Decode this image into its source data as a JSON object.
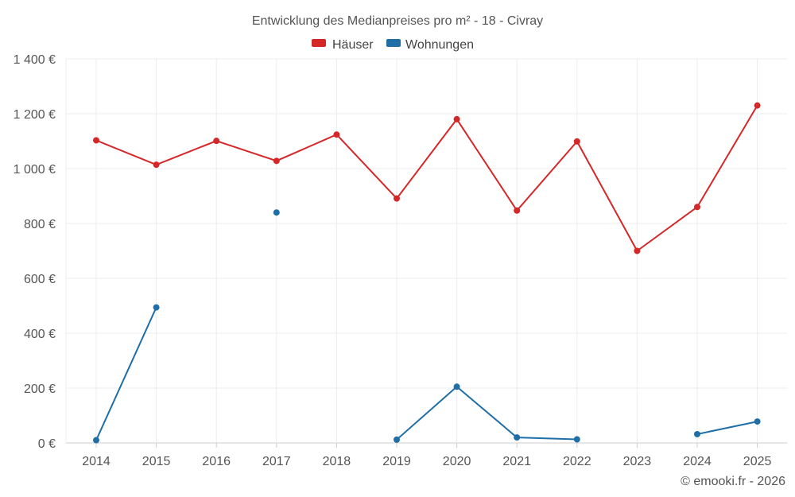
{
  "chart_data": {
    "type": "line",
    "title": "Entwicklung des Medianpreises pro m² - 18 - Civray",
    "xlabel": "",
    "ylabel": "",
    "categories": [
      "2014",
      "2015",
      "2016",
      "2017",
      "2018",
      "2019",
      "2020",
      "2021",
      "2022",
      "2023",
      "2024",
      "2025"
    ],
    "ylim": [
      0,
      1400
    ],
    "yticks": [
      0,
      200,
      400,
      600,
      800,
      1000,
      1200,
      1400
    ],
    "ytick_labels": [
      "0 €",
      "200 €",
      "400 €",
      "600 €",
      "800 €",
      "1 000 €",
      "1 200 €",
      "1 400 €"
    ],
    "grid": true,
    "legend_position": "top-center",
    "series": [
      {
        "name": "Häuser",
        "color": "#d62728",
        "values": [
          1103,
          1014,
          1101,
          1028,
          1124,
          891,
          1180,
          847,
          1099,
          700,
          860,
          1230
        ]
      },
      {
        "name": "Wohnungen",
        "color": "#1f6fa6",
        "values": [
          10,
          494,
          null,
          840,
          null,
          12,
          205,
          20,
          13,
          null,
          32,
          78
        ]
      }
    ]
  },
  "credit": "© emooki.fr - 2026"
}
